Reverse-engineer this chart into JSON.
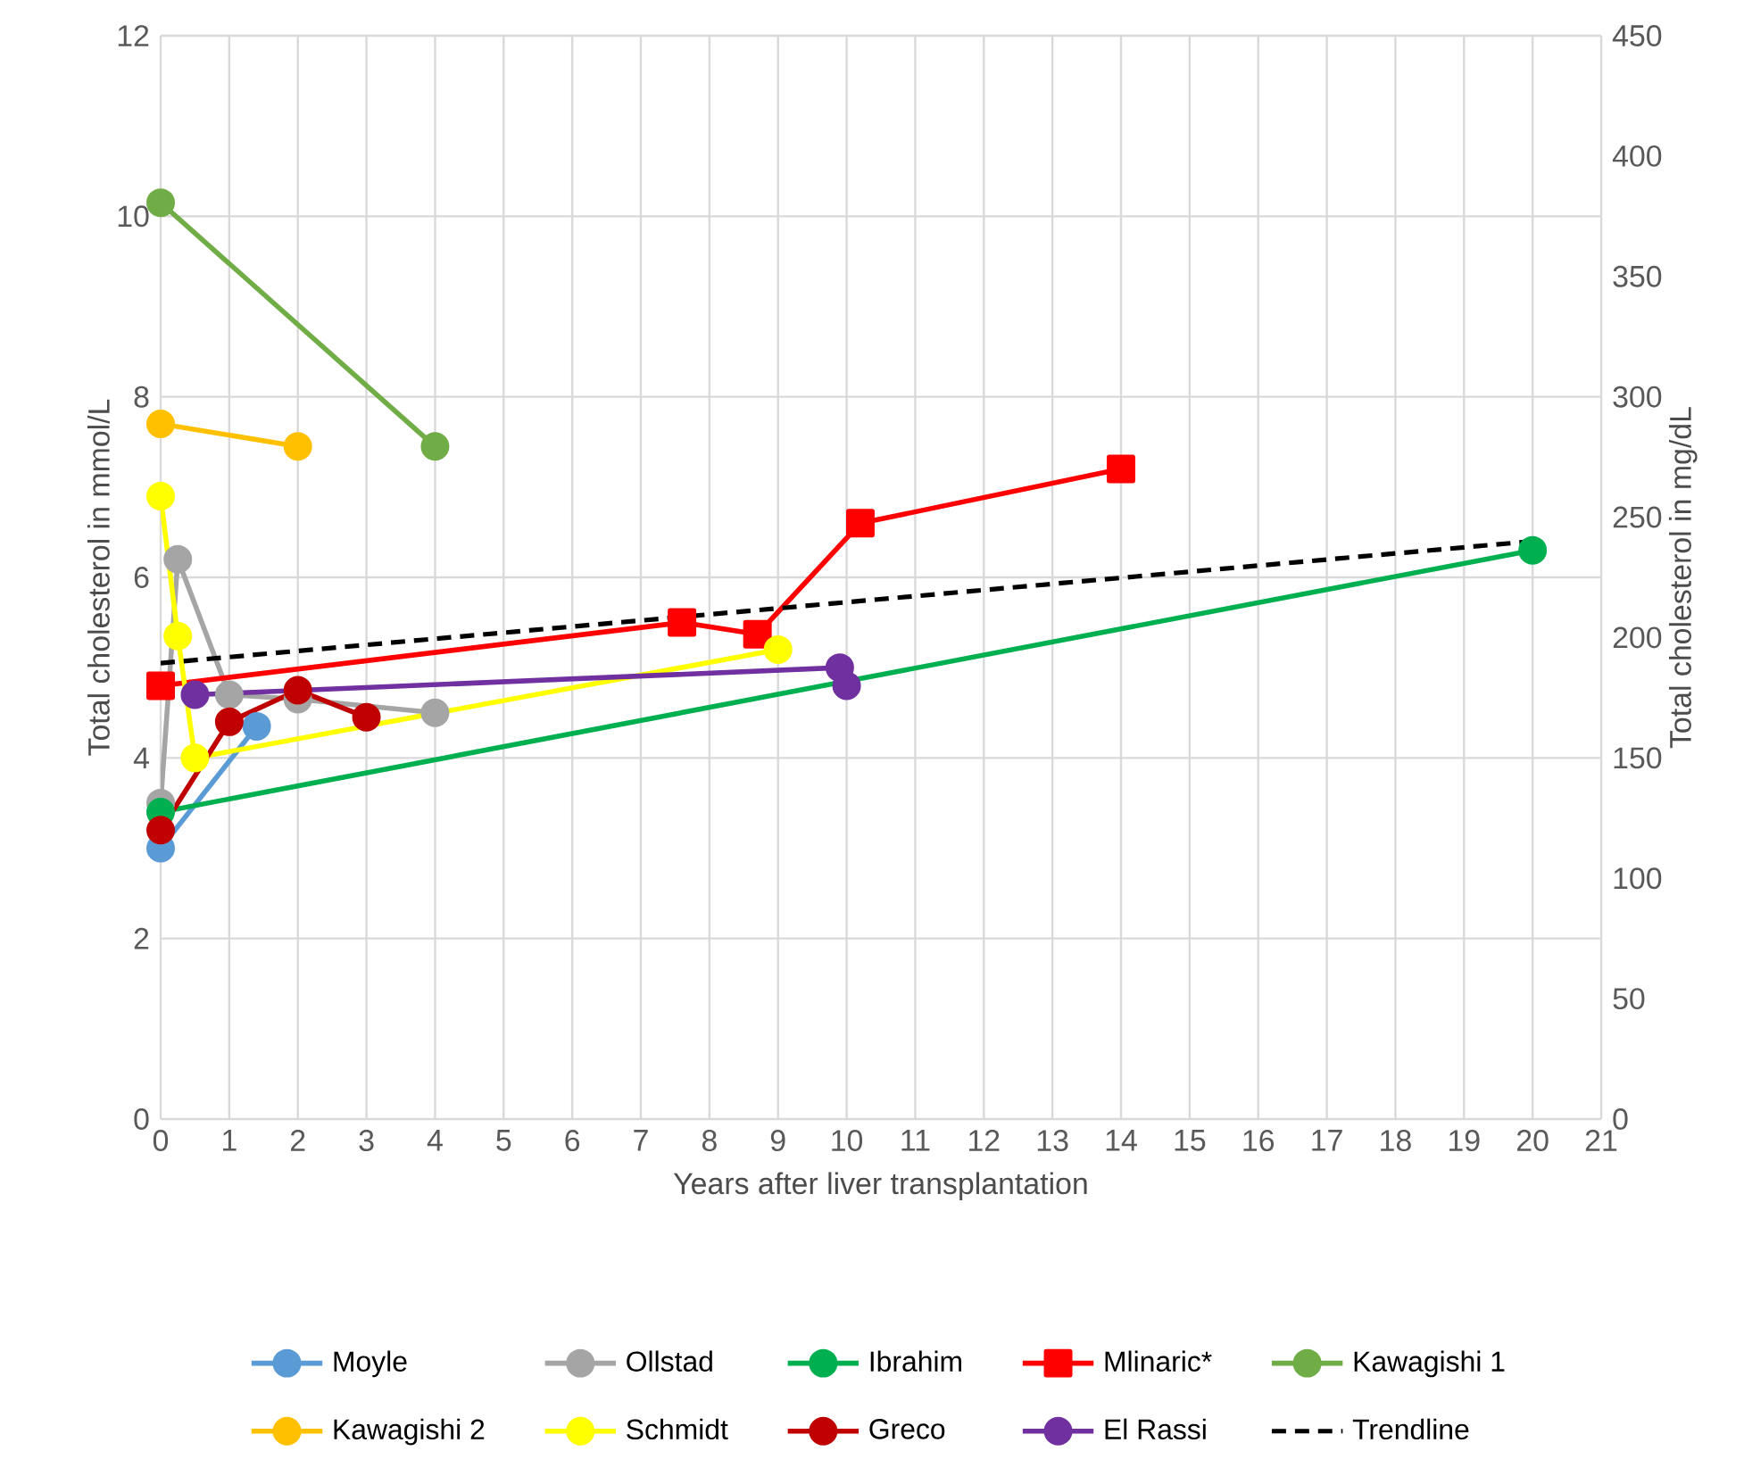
{
  "chart_data": {
    "type": "line",
    "xlabel": "Years after liver transplantation",
    "ylabel": "Total cholesterol in mmol/L",
    "y2label": "Total cholesterol in mg/dL",
    "xlim": [
      0,
      21
    ],
    "xticks": [
      0,
      1,
      2,
      3,
      4,
      5,
      6,
      7,
      8,
      9,
      10,
      11,
      12,
      13,
      14,
      15,
      16,
      17,
      18,
      19,
      20,
      21
    ],
    "ylim": [
      0,
      12
    ],
    "yticks": [
      0,
      2,
      4,
      6,
      8,
      10,
      12
    ],
    "y2lim": [
      0,
      450
    ],
    "y2ticks": [
      0,
      50,
      100,
      150,
      200,
      250,
      300,
      350,
      400,
      450
    ],
    "grid": true,
    "legend": "bottom",
    "marker": "circle",
    "series": [
      {
        "name": "Moyle",
        "color": "#5b9bd5",
        "x": [
          0,
          1.4
        ],
        "values": [
          3.0,
          4.35
        ]
      },
      {
        "name": "Ollstad",
        "color": "#a5a5a5",
        "x": [
          0,
          0.25,
          1,
          2,
          4
        ],
        "values": [
          3.5,
          6.2,
          4.7,
          4.65,
          4.5
        ]
      },
      {
        "name": "Ibrahim",
        "color": "#00b050",
        "x": [
          0,
          20
        ],
        "values": [
          3.4,
          6.3
        ]
      },
      {
        "name": "Mlinaric*",
        "color": "#ff0000",
        "marker": "square",
        "x": [
          0,
          7.6,
          8.7,
          10.2,
          14
        ],
        "values": [
          4.8,
          5.5,
          5.37,
          6.6,
          7.2
        ]
      },
      {
        "name": "Kawagishi 1",
        "color": "#70ad47",
        "x": [
          0,
          4
        ],
        "values": [
          10.15,
          7.45
        ]
      },
      {
        "name": "Kawagishi 2",
        "color": "#ffc000",
        "x": [
          0,
          2
        ],
        "values": [
          7.7,
          7.45
        ]
      },
      {
        "name": "Schmidt",
        "color": "#ffff00",
        "x": [
          0,
          0.25,
          0.5,
          9
        ],
        "values": [
          6.9,
          5.35,
          4.0,
          5.2
        ]
      },
      {
        "name": "Greco",
        "color": "#c00000",
        "x": [
          0,
          1,
          2,
          3
        ],
        "values": [
          3.2,
          4.4,
          4.75,
          4.45
        ]
      },
      {
        "name": "El Rassi",
        "color": "#7030a0",
        "x": [
          0.5,
          9.9,
          10
        ],
        "values": [
          4.7,
          5.0,
          4.8
        ]
      },
      {
        "name": "Trendline",
        "color": "#000000",
        "marker": "none",
        "line_style": "dashed",
        "x": [
          0,
          20
        ],
        "values": [
          5.05,
          6.4
        ]
      }
    ]
  }
}
